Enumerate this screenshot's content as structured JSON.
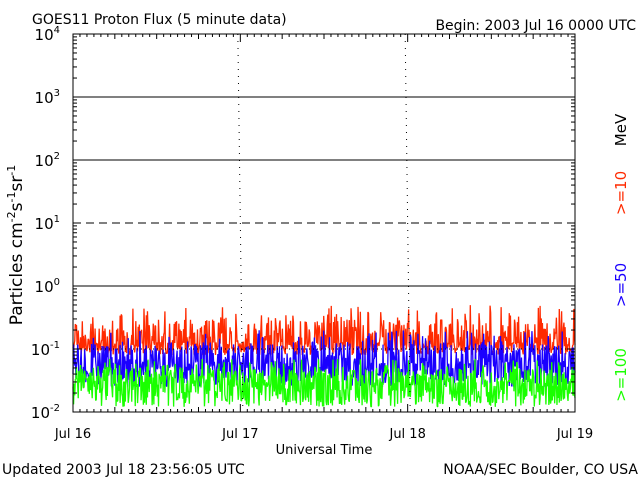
{
  "header": {
    "title": "GOES11 Proton Flux (5 minute data)",
    "begin": "Begin: 2003 Jul 16 0000 UTC"
  },
  "footer": {
    "updated": "Updated 2003 Jul 18 23:56:05 UTC",
    "credit": "NOAA/SEC Boulder, CO USA"
  },
  "chart_data": {
    "type": "line",
    "title": "GOES11 Proton Flux (5 minute data)",
    "xlabel": "Universal Time",
    "ylabel": {
      "base": "Particles cm",
      "e1": "-2",
      "s1": "s",
      "e2": "-1",
      "s2": "sr",
      "e3": "-1"
    },
    "yscale": "log",
    "ylim": [
      0.01,
      10000
    ],
    "xlim": [
      0,
      3
    ],
    "x_unit": "days since 2003 Jul 16 0000 UTC",
    "x_ticks": [
      {
        "value": 0,
        "label": "Jul 16"
      },
      {
        "value": 1,
        "label": "Jul 17"
      },
      {
        "value": 2,
        "label": "Jul 18"
      },
      {
        "value": 3,
        "label": "Jul 19"
      }
    ],
    "y_ticks": [
      {
        "value": 0.01,
        "base": "10",
        "exp": "-2"
      },
      {
        "value": 0.1,
        "base": "10",
        "exp": "-1"
      },
      {
        "value": 1,
        "base": "10",
        "exp": "0"
      },
      {
        "value": 10,
        "base": "10",
        "exp": "1"
      },
      {
        "value": 100,
        "base": "10",
        "exp": "2"
      },
      {
        "value": 1000,
        "base": "10",
        "exp": "3"
      },
      {
        "value": 10000,
        "base": "10",
        "exp": "4"
      }
    ],
    "thresholds": [
      {
        "value": 1,
        "style": "solid"
      },
      {
        "value": 10,
        "style": "dashed"
      },
      {
        "value": 100,
        "style": "solid"
      },
      {
        "value": 1000,
        "style": "solid"
      },
      {
        "value": 0.1,
        "style": "dotted"
      }
    ],
    "series": [
      {
        "name": ">=10",
        "color": "#ff2a00",
        "typical": 0.13,
        "peak": 0.5,
        "floor": 0.08
      },
      {
        "name": ">=50",
        "color": "#1a00ff",
        "typical": 0.06,
        "peak": 0.2,
        "floor": 0.025
      },
      {
        "name": ">=100",
        "color": "#1aff00",
        "typical": 0.03,
        "peak": 0.07,
        "floor": 0.012
      }
    ],
    "legend_unit": "MeV",
    "legend_position": "right"
  }
}
